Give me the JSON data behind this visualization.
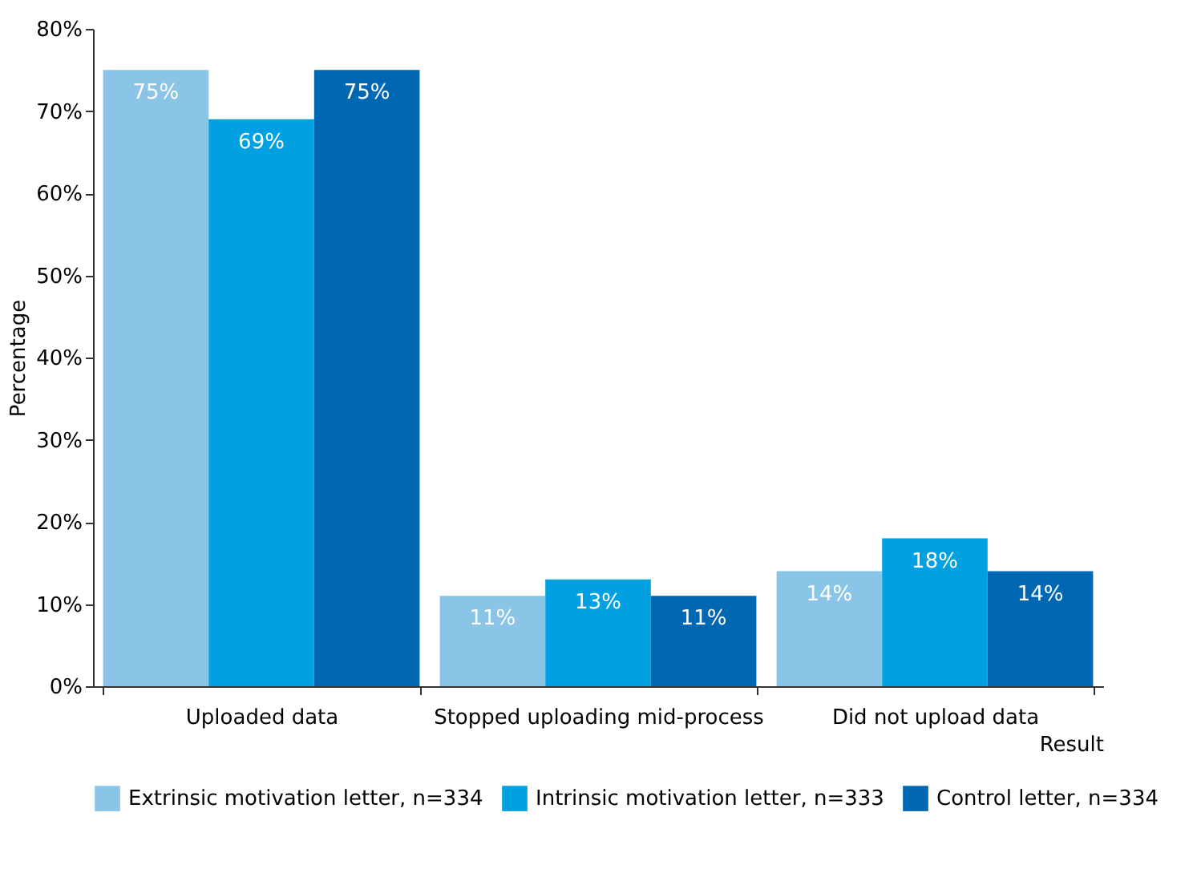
{
  "chart_data": {
    "type": "bar",
    "xlabel": "Result",
    "ylabel": "Percentage",
    "categories": [
      "Uploaded data",
      "Stopped uploading mid-process",
      "Did not upload data"
    ],
    "series": [
      {
        "name": "Extrinsic motivation letter, n=334",
        "color": "#8ac4e6",
        "values": [
          75,
          11,
          14
        ],
        "value_labels": [
          "75%",
          "11%",
          "14%"
        ]
      },
      {
        "name": "Intrinsic motivation letter, n=333",
        "color": "#00a0e1",
        "values": [
          69,
          13,
          18
        ],
        "value_labels": [
          "69%",
          "13%",
          "18%"
        ]
      },
      {
        "name": "Control letter, n=334",
        "color": "#0068b2",
        "values": [
          75,
          11,
          14
        ],
        "value_labels": [
          "75%",
          "11%",
          "14%"
        ]
      }
    ],
    "ylim": [
      0,
      80
    ],
    "yticks": [
      {
        "value": 0,
        "label": "0%"
      },
      {
        "value": 10,
        "label": "10%"
      },
      {
        "value": 20,
        "label": "20%"
      },
      {
        "value": 30,
        "label": "30%"
      },
      {
        "value": 40,
        "label": "40%"
      },
      {
        "value": 50,
        "label": "50%"
      },
      {
        "value": 60,
        "label": "60%"
      },
      {
        "value": 70,
        "label": "70%"
      },
      {
        "value": 80,
        "label": "80%"
      }
    ],
    "grid": false,
    "legend": "bottom"
  }
}
